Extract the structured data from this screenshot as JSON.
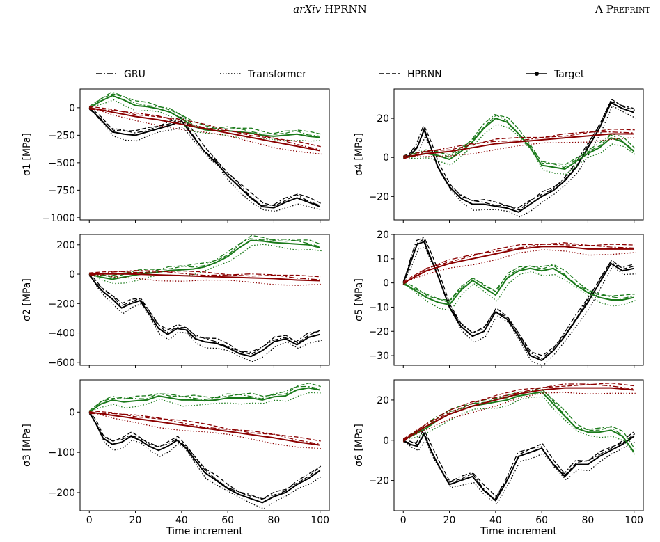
{
  "header": {
    "venue": "arXiv",
    "title": "HPRNN",
    "right": "A Preprint"
  },
  "legend": {
    "entries": [
      {
        "name": "GRU",
        "style": "dashdot"
      },
      {
        "name": "Transformer",
        "style": "dotted"
      },
      {
        "name": "HPRNN",
        "style": "dashed"
      },
      {
        "name": "Target",
        "style": "solid-marker"
      }
    ]
  },
  "colors": {
    "black": "#000000",
    "green": "#1a7a1a",
    "red": "#8b0000"
  },
  "chart_data": [
    {
      "type": "line",
      "title": "",
      "xlabel": "",
      "ylabel": "σ1 [MPa]",
      "xlim": [
        -4,
        104
      ],
      "ylim": [
        -1020,
        170
      ],
      "yticks": [
        0,
        -250,
        -500,
        -750,
        -1000
      ],
      "yticklabels": [
        "0",
        "−250",
        "−500",
        "−750",
        "−1000"
      ],
      "xticks": [
        0,
        20,
        40,
        60,
        80,
        100
      ],
      "xticklabels": [],
      "series": [
        {
          "color": "black",
          "x": [
            0,
            5,
            10,
            15,
            20,
            25,
            30,
            35,
            40,
            45,
            50,
            55,
            60,
            65,
            70,
            75,
            80,
            85,
            90,
            95,
            100
          ],
          "y": [
            0,
            -110,
            -220,
            -240,
            -250,
            -220,
            -190,
            -160,
            -120,
            -260,
            -400,
            -500,
            -620,
            -720,
            -820,
            -900,
            -910,
            -860,
            -820,
            -860,
            -900
          ]
        },
        {
          "color": "green",
          "x": [
            0,
            5,
            10,
            15,
            20,
            25,
            30,
            35,
            40,
            45,
            50,
            55,
            60,
            65,
            70,
            75,
            80,
            85,
            90,
            95,
            100
          ],
          "y": [
            0,
            60,
            110,
            70,
            20,
            10,
            -10,
            -40,
            -100,
            -170,
            -200,
            -210,
            -210,
            -220,
            -230,
            -250,
            -260,
            -250,
            -240,
            -260,
            -270
          ]
        },
        {
          "color": "red",
          "x": [
            0,
            10,
            20,
            30,
            40,
            50,
            60,
            70,
            80,
            90,
            100
          ],
          "y": [
            0,
            -40,
            -80,
            -110,
            -150,
            -190,
            -230,
            -270,
            -310,
            -350,
            -390
          ]
        }
      ]
    },
    {
      "type": "line",
      "title": "",
      "xlabel": "",
      "ylabel": "σ4 [MPa]",
      "xlim": [
        -4,
        104
      ],
      "ylim": [
        -32,
        35
      ],
      "yticks": [
        20,
        0,
        -20
      ],
      "yticklabels": [
        "20",
        "0",
        "−20"
      ],
      "xticks": [
        0,
        20,
        40,
        60,
        80,
        100
      ],
      "xticklabels": [],
      "series": [
        {
          "color": "black",
          "x": [
            0,
            3,
            6,
            9,
            12,
            15,
            20,
            25,
            30,
            35,
            40,
            45,
            50,
            55,
            60,
            65,
            70,
            75,
            80,
            85,
            90,
            95,
            100
          ],
          "y": [
            0,
            1,
            5,
            14,
            5,
            -5,
            -15,
            -21,
            -24,
            -24,
            -25,
            -26,
            -28,
            -24,
            -20,
            -17,
            -12,
            -5,
            5,
            15,
            28,
            25,
            23
          ]
        },
        {
          "color": "green",
          "x": [
            0,
            5,
            10,
            15,
            20,
            25,
            30,
            35,
            40,
            45,
            50,
            55,
            60,
            65,
            70,
            75,
            80,
            85,
            90,
            95,
            100
          ],
          "y": [
            0,
            1,
            2,
            1,
            -1,
            3,
            8,
            15,
            20,
            18,
            12,
            5,
            -4,
            -5,
            -6,
            -2,
            2,
            5,
            10,
            8,
            3
          ]
        },
        {
          "color": "red",
          "x": [
            0,
            10,
            20,
            30,
            40,
            50,
            60,
            70,
            80,
            90,
            100
          ],
          "y": [
            0,
            2,
            3,
            5,
            7,
            8,
            9,
            10,
            11,
            12,
            12
          ]
        }
      ]
    },
    {
      "type": "line",
      "title": "",
      "xlabel": "",
      "ylabel": "σ2 [MPa]",
      "xlim": [
        -4,
        104
      ],
      "ylim": [
        -620,
        270
      ],
      "yticks": [
        200,
        0,
        -200,
        -400,
        -600
      ],
      "yticklabels": [
        "200",
        "0",
        "−200",
        "−400",
        "−600"
      ],
      "xticks": [
        0,
        20,
        40,
        60,
        80,
        100
      ],
      "xticklabels": [],
      "series": [
        {
          "color": "black",
          "x": [
            0,
            3,
            6,
            10,
            14,
            18,
            22,
            26,
            30,
            34,
            38,
            42,
            46,
            50,
            55,
            60,
            65,
            70,
            75,
            80,
            85,
            90,
            95,
            100
          ],
          "y": [
            0,
            -70,
            -120,
            -170,
            -230,
            -200,
            -180,
            -270,
            -370,
            -410,
            -370,
            -380,
            -440,
            -460,
            -470,
            -500,
            -540,
            -560,
            -520,
            -460,
            -440,
            -480,
            -430,
            -410
          ]
        },
        {
          "color": "green",
          "x": [
            0,
            5,
            10,
            15,
            20,
            25,
            30,
            35,
            40,
            45,
            50,
            55,
            60,
            65,
            70,
            75,
            80,
            85,
            90,
            95,
            100
          ],
          "y": [
            0,
            -20,
            -35,
            -20,
            -5,
            5,
            15,
            25,
            30,
            35,
            50,
            80,
            120,
            180,
            230,
            225,
            215,
            210,
            205,
            200,
            180
          ]
        },
        {
          "color": "red",
          "x": [
            0,
            10,
            20,
            30,
            40,
            50,
            60,
            70,
            80,
            90,
            100
          ],
          "y": [
            0,
            2,
            0,
            -5,
            -10,
            -15,
            -20,
            -25,
            -30,
            -40,
            -45
          ]
        }
      ]
    },
    {
      "type": "line",
      "title": "",
      "xlabel": "",
      "ylabel": "σ5 [MPa]",
      "xlim": [
        -4,
        104
      ],
      "ylim": [
        -34,
        20
      ],
      "yticks": [
        20,
        10,
        0,
        -10,
        -20,
        -30
      ],
      "yticklabels": [
        "20",
        "10",
        "0",
        "−10",
        "−20",
        "−30"
      ],
      "xticks": [
        0,
        20,
        40,
        60,
        80,
        100
      ],
      "xticklabels": [],
      "series": [
        {
          "color": "black",
          "x": [
            0,
            3,
            6,
            9,
            12,
            15,
            20,
            25,
            30,
            35,
            40,
            45,
            50,
            55,
            60,
            65,
            70,
            75,
            80,
            85,
            90,
            95,
            100
          ],
          "y": [
            0,
            8,
            16,
            17,
            10,
            3,
            -10,
            -18,
            -22,
            -20,
            -12,
            -15,
            -22,
            -30,
            -32,
            -28,
            -22,
            -15,
            -8,
            0,
            8,
            5,
            6
          ]
        },
        {
          "color": "green",
          "x": [
            0,
            5,
            10,
            15,
            20,
            25,
            30,
            35,
            40,
            45,
            50,
            55,
            60,
            65,
            70,
            75,
            80,
            85,
            90,
            95,
            100
          ],
          "y": [
            0,
            -3,
            -6,
            -8,
            -9,
            -3,
            1,
            -2,
            -5,
            2,
            5,
            6,
            5,
            6,
            3,
            -1,
            -4,
            -6,
            -7,
            -7,
            -6
          ]
        },
        {
          "color": "red",
          "x": [
            0,
            10,
            20,
            30,
            40,
            50,
            60,
            70,
            80,
            90,
            100
          ],
          "y": [
            0,
            5,
            8,
            10,
            12,
            14,
            15,
            15,
            14,
            14,
            14
          ]
        }
      ]
    },
    {
      "type": "line",
      "title": "",
      "xlabel": "Time increment",
      "ylabel": "σ3 [MPa]",
      "xlim": [
        -4,
        104
      ],
      "ylim": [
        -245,
        80
      ],
      "yticks": [
        0,
        -100,
        -200
      ],
      "yticklabels": [
        "0",
        "−100",
        "−200"
      ],
      "xticks": [
        0,
        20,
        40,
        60,
        80,
        100
      ],
      "xticklabels": [
        "0",
        "20",
        "40",
        "60",
        "80",
        "100"
      ],
      "series": [
        {
          "color": "black",
          "x": [
            0,
            3,
            6,
            10,
            14,
            18,
            22,
            26,
            30,
            34,
            38,
            42,
            46,
            50,
            55,
            60,
            65,
            70,
            75,
            80,
            85,
            90,
            95,
            100
          ],
          "y": [
            0,
            -30,
            -65,
            -80,
            -75,
            -60,
            -70,
            -85,
            -95,
            -85,
            -70,
            -90,
            -120,
            -150,
            -170,
            -190,
            -205,
            -215,
            -225,
            -210,
            -200,
            -180,
            -165,
            -145
          ]
        },
        {
          "color": "green",
          "x": [
            0,
            5,
            10,
            15,
            20,
            25,
            30,
            35,
            40,
            45,
            50,
            55,
            60,
            65,
            70,
            75,
            80,
            85,
            90,
            95,
            100
          ],
          "y": [
            0,
            20,
            30,
            25,
            28,
            30,
            40,
            35,
            30,
            30,
            28,
            30,
            35,
            35,
            35,
            30,
            38,
            40,
            55,
            60,
            55
          ]
        },
        {
          "color": "red",
          "x": [
            0,
            10,
            20,
            30,
            40,
            50,
            60,
            70,
            80,
            90,
            100
          ],
          "y": [
            0,
            -8,
            -16,
            -24,
            -32,
            -40,
            -48,
            -56,
            -64,
            -74,
            -82
          ]
        }
      ]
    },
    {
      "type": "line",
      "title": "",
      "xlabel": "Time increment",
      "ylabel": "σ6 [MPa]",
      "xlim": [
        -4,
        104
      ],
      "ylim": [
        -35,
        30
      ],
      "yticks": [
        20,
        0,
        -20
      ],
      "yticklabels": [
        "20",
        "0",
        "−20"
      ],
      "xticks": [
        0,
        20,
        40,
        60,
        80,
        100
      ],
      "xticklabels": [
        "0",
        "20",
        "40",
        "60",
        "80",
        "100"
      ],
      "series": [
        {
          "color": "black",
          "x": [
            0,
            3,
            6,
            9,
            12,
            15,
            20,
            25,
            30,
            35,
            40,
            45,
            50,
            55,
            60,
            65,
            70,
            75,
            80,
            85,
            90,
            95,
            100
          ],
          "y": [
            0,
            -2,
            -3,
            3,
            -5,
            -12,
            -22,
            -20,
            -18,
            -25,
            -30,
            -20,
            -8,
            -6,
            -4,
            -12,
            -18,
            -12,
            -12,
            -8,
            -5,
            -2,
            2
          ]
        },
        {
          "color": "green",
          "x": [
            0,
            5,
            10,
            15,
            20,
            25,
            30,
            35,
            40,
            45,
            50,
            55,
            60,
            65,
            70,
            75,
            80,
            85,
            90,
            95,
            100
          ],
          "y": [
            0,
            3,
            6,
            10,
            13,
            15,
            17,
            18,
            19,
            20,
            22,
            23,
            24,
            18,
            12,
            6,
            4,
            4,
            5,
            2,
            -6
          ]
        },
        {
          "color": "red",
          "x": [
            0,
            10,
            20,
            30,
            40,
            50,
            60,
            70,
            80,
            90,
            100
          ],
          "y": [
            0,
            7,
            13,
            17,
            20,
            23,
            25,
            26,
            26,
            26,
            25
          ]
        }
      ]
    }
  ]
}
